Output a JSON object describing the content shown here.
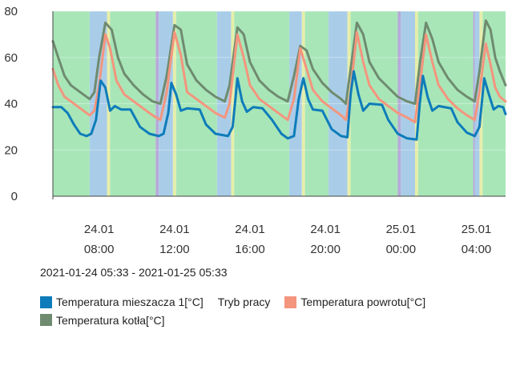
{
  "chart_data": {
    "type": "line",
    "y_ticks": [
      0,
      20,
      40,
      60,
      80
    ],
    "ylim": [
      0,
      80
    ],
    "x_range": [
      "2021-01-24 05:33",
      "2021-01-25 05:33"
    ],
    "x_ticks": [
      {
        "t": "2021-01-24 08:00",
        "date": "24.01",
        "time": "08:00"
      },
      {
        "t": "2021-01-24 12:00",
        "date": "24.01",
        "time": "12:00"
      },
      {
        "t": "2021-01-24 16:00",
        "date": "24.01",
        "time": "16:00"
      },
      {
        "t": "2021-01-24 20:00",
        "date": "24.01",
        "time": "20:00"
      },
      {
        "t": "2021-01-25 00:00",
        "date": "25.01",
        "time": "00:00"
      },
      {
        "t": "2021-01-25 04:00",
        "date": "25.01",
        "time": "04:00"
      }
    ],
    "mode_colors": {
      "green": "#a8e6b8",
      "blue": "#a9cde8",
      "yellow": "#e6eeaa",
      "purple": "#b6a9d8"
    },
    "mode_bands": [
      {
        "start": "2021-01-24 05:33",
        "end": "2021-01-24 07:30",
        "mode": "green"
      },
      {
        "start": "2021-01-24 07:30",
        "end": "2021-01-24 08:25",
        "mode": "blue"
      },
      {
        "start": "2021-01-24 08:25",
        "end": "2021-01-24 08:35",
        "mode": "yellow"
      },
      {
        "start": "2021-01-24 08:35",
        "end": "2021-01-24 11:00",
        "mode": "green"
      },
      {
        "start": "2021-01-24 11:00",
        "end": "2021-01-24 11:10",
        "mode": "purple"
      },
      {
        "start": "2021-01-24 11:10",
        "end": "2021-01-24 11:55",
        "mode": "blue"
      },
      {
        "start": "2021-01-24 11:55",
        "end": "2021-01-24 12:05",
        "mode": "yellow"
      },
      {
        "start": "2021-01-24 12:05",
        "end": "2021-01-24 14:15",
        "mode": "green"
      },
      {
        "start": "2021-01-24 14:15",
        "end": "2021-01-24 15:00",
        "mode": "blue"
      },
      {
        "start": "2021-01-24 15:00",
        "end": "2021-01-24 15:10",
        "mode": "yellow"
      },
      {
        "start": "2021-01-24 15:10",
        "end": "2021-01-24 18:05",
        "mode": "green"
      },
      {
        "start": "2021-01-24 18:05",
        "end": "2021-01-24 18:45",
        "mode": "blue"
      },
      {
        "start": "2021-01-24 18:45",
        "end": "2021-01-24 18:55",
        "mode": "yellow"
      },
      {
        "start": "2021-01-24 18:55",
        "end": "2021-01-24 20:10",
        "mode": "green"
      },
      {
        "start": "2021-01-24 20:10",
        "end": "2021-01-24 21:10",
        "mode": "blue"
      },
      {
        "start": "2021-01-24 21:10",
        "end": "2021-01-24 21:20",
        "mode": "yellow"
      },
      {
        "start": "2021-01-24 21:20",
        "end": "2021-01-24 23:50",
        "mode": "green"
      },
      {
        "start": "2021-01-24 23:50",
        "end": "2021-01-25 00:00",
        "mode": "purple"
      },
      {
        "start": "2021-01-25 00:00",
        "end": "2021-01-25 00:45",
        "mode": "blue"
      },
      {
        "start": "2021-01-25 00:45",
        "end": "2021-01-25 00:55",
        "mode": "yellow"
      },
      {
        "start": "2021-01-25 00:55",
        "end": "2021-01-25 03:50",
        "mode": "green"
      },
      {
        "start": "2021-01-25 03:50",
        "end": "2021-01-25 03:55",
        "mode": "purple"
      },
      {
        "start": "2021-01-25 03:55",
        "end": "2021-01-25 04:10",
        "mode": "blue"
      },
      {
        "start": "2021-01-25 04:10",
        "end": "2021-01-25 04:20",
        "mode": "yellow"
      },
      {
        "start": "2021-01-25 04:20",
        "end": "2021-01-25 05:33",
        "mode": "green"
      }
    ],
    "series": [
      {
        "name": "Temperatura mieszacza 1[°C]",
        "color": "#0e7cba",
        "points": [
          [
            "2021-01-24 05:33",
            38.5
          ],
          [
            "2021-01-24 06:00",
            38.5
          ],
          [
            "2021-01-24 06:20",
            36
          ],
          [
            "2021-01-24 06:40",
            31
          ],
          [
            "2021-01-24 07:00",
            27
          ],
          [
            "2021-01-24 07:20",
            26
          ],
          [
            "2021-01-24 07:35",
            27
          ],
          [
            "2021-01-24 07:50",
            33
          ],
          [
            "2021-01-24 08:05",
            50
          ],
          [
            "2021-01-24 08:20",
            47
          ],
          [
            "2021-01-24 08:35",
            37
          ],
          [
            "2021-01-24 08:50",
            39
          ],
          [
            "2021-01-24 09:10",
            37.5
          ],
          [
            "2021-01-24 09:40",
            37.5
          ],
          [
            "2021-01-24 10:10",
            30
          ],
          [
            "2021-01-24 10:40",
            27
          ],
          [
            "2021-01-24 11:10",
            26
          ],
          [
            "2021-01-24 11:25",
            27
          ],
          [
            "2021-01-24 11:40",
            36
          ],
          [
            "2021-01-24 11:50",
            49
          ],
          [
            "2021-01-24 12:05",
            44
          ],
          [
            "2021-01-24 12:20",
            37
          ],
          [
            "2021-01-24 12:40",
            38
          ],
          [
            "2021-01-24 13:20",
            37.5
          ],
          [
            "2021-01-24 13:40",
            31
          ],
          [
            "2021-01-24 14:10",
            27
          ],
          [
            "2021-01-24 14:50",
            26
          ],
          [
            "2021-01-24 15:05",
            30
          ],
          [
            "2021-01-24 15:20",
            51
          ],
          [
            "2021-01-24 15:35",
            41
          ],
          [
            "2021-01-24 15:50",
            36.5
          ],
          [
            "2021-01-24 16:10",
            38.5
          ],
          [
            "2021-01-24 16:40",
            38
          ],
          [
            "2021-01-24 17:10",
            33
          ],
          [
            "2021-01-24 17:40",
            27
          ],
          [
            "2021-01-24 18:00",
            25
          ],
          [
            "2021-01-24 18:20",
            26
          ],
          [
            "2021-01-24 18:35",
            42
          ],
          [
            "2021-01-24 18:50",
            51
          ],
          [
            "2021-01-24 19:05",
            42
          ],
          [
            "2021-01-24 19:20",
            37.5
          ],
          [
            "2021-01-24 19:50",
            37
          ],
          [
            "2021-01-24 20:20",
            29
          ],
          [
            "2021-01-24 20:50",
            26
          ],
          [
            "2021-01-24 21:10",
            25.5
          ],
          [
            "2021-01-24 21:20",
            44
          ],
          [
            "2021-01-24 21:30",
            54
          ],
          [
            "2021-01-24 21:45",
            44
          ],
          [
            "2021-01-24 22:00",
            37
          ],
          [
            "2021-01-24 22:20",
            40
          ],
          [
            "2021-01-24 23:00",
            39.5
          ],
          [
            "2021-01-24 23:20",
            33
          ],
          [
            "2021-01-24 23:50",
            27
          ],
          [
            "2021-01-25 00:20",
            25
          ],
          [
            "2021-01-25 00:50",
            24.5
          ],
          [
            "2021-01-25 01:00",
            40
          ],
          [
            "2021-01-25 01:10",
            52
          ],
          [
            "2021-01-25 01:25",
            43
          ],
          [
            "2021-01-25 01:40",
            37
          ],
          [
            "2021-01-25 02:00",
            39
          ],
          [
            "2021-01-25 02:40",
            38
          ],
          [
            "2021-01-25 03:00",
            32
          ],
          [
            "2021-01-25 03:30",
            27.5
          ],
          [
            "2021-01-25 03:55",
            26
          ],
          [
            "2021-01-25 04:10",
            30
          ],
          [
            "2021-01-25 04:25",
            51
          ],
          [
            "2021-01-25 04:40",
            44
          ],
          [
            "2021-01-25 04:55",
            37.5
          ],
          [
            "2021-01-25 05:10",
            39
          ],
          [
            "2021-01-25 05:25",
            38.5
          ],
          [
            "2021-01-25 05:33",
            35.5
          ]
        ]
      },
      {
        "name": "Tryb pracy",
        "color": "",
        "points": []
      },
      {
        "name": "Temperatura powrotu[°C]",
        "color": "#f4957e",
        "points": [
          [
            "2021-01-24 05:33",
            55
          ],
          [
            "2021-01-24 05:50",
            48
          ],
          [
            "2021-01-24 06:10",
            43
          ],
          [
            "2021-01-24 06:30",
            41
          ],
          [
            "2021-01-24 07:00",
            38
          ],
          [
            "2021-01-24 07:30",
            35
          ],
          [
            "2021-01-24 07:45",
            37
          ],
          [
            "2021-01-24 08:00",
            48
          ],
          [
            "2021-01-24 08:20",
            70
          ],
          [
            "2021-01-24 08:35",
            64
          ],
          [
            "2021-01-24 08:55",
            50
          ],
          [
            "2021-01-24 09:20",
            44
          ],
          [
            "2021-01-24 09:50",
            41
          ],
          [
            "2021-01-24 10:20",
            38
          ],
          [
            "2021-01-24 10:50",
            35
          ],
          [
            "2021-01-24 11:15",
            33
          ],
          [
            "2021-01-24 11:35",
            45
          ],
          [
            "2021-01-24 12:00",
            71
          ],
          [
            "2021-01-24 12:20",
            61
          ],
          [
            "2021-01-24 12:40",
            45
          ],
          [
            "2021-01-24 13:10",
            42
          ],
          [
            "2021-01-24 13:40",
            39
          ],
          [
            "2021-01-24 14:10",
            36
          ],
          [
            "2021-01-24 14:40",
            34
          ],
          [
            "2021-01-24 14:55",
            40
          ],
          [
            "2021-01-24 15:20",
            70
          ],
          [
            "2021-01-24 15:40",
            60
          ],
          [
            "2021-01-24 16:00",
            48
          ],
          [
            "2021-01-24 16:30",
            42
          ],
          [
            "2021-01-24 17:00",
            39
          ],
          [
            "2021-01-24 17:30",
            36
          ],
          [
            "2021-01-24 18:00",
            33
          ],
          [
            "2021-01-24 18:20",
            42
          ],
          [
            "2021-01-24 18:40",
            64
          ],
          [
            "2021-01-24 19:00",
            55
          ],
          [
            "2021-01-24 19:20",
            46
          ],
          [
            "2021-01-24 19:50",
            41
          ],
          [
            "2021-01-24 20:20",
            38
          ],
          [
            "2021-01-24 20:50",
            35
          ],
          [
            "2021-01-24 21:05",
            33
          ],
          [
            "2021-01-24 21:20",
            45
          ],
          [
            "2021-01-24 21:40",
            71
          ],
          [
            "2021-01-24 22:00",
            58
          ],
          [
            "2021-01-24 22:20",
            48
          ],
          [
            "2021-01-24 22:50",
            42
          ],
          [
            "2021-01-24 23:20",
            39
          ],
          [
            "2021-01-24 23:50",
            36
          ],
          [
            "2021-01-25 00:20",
            34
          ],
          [
            "2021-01-25 00:45",
            32
          ],
          [
            "2021-01-25 01:00",
            48
          ],
          [
            "2021-01-25 01:20",
            70
          ],
          [
            "2021-01-25 01:40",
            58
          ],
          [
            "2021-01-25 02:00",
            48
          ],
          [
            "2021-01-25 02:30",
            42
          ],
          [
            "2021-01-25 03:00",
            38
          ],
          [
            "2021-01-25 03:30",
            35
          ],
          [
            "2021-01-25 03:55",
            33
          ],
          [
            "2021-01-25 04:10",
            45
          ],
          [
            "2021-01-25 04:30",
            66
          ],
          [
            "2021-01-25 04:45",
            57
          ],
          [
            "2021-01-25 05:00",
            47
          ],
          [
            "2021-01-25 05:15",
            43
          ],
          [
            "2021-01-25 05:33",
            41
          ]
        ]
      },
      {
        "name": "Temperatura kotła[°C]",
        "color": "#6f8b6f",
        "points": [
          [
            "2021-01-24 05:33",
            67
          ],
          [
            "2021-01-24 05:50",
            60
          ],
          [
            "2021-01-24 06:10",
            52
          ],
          [
            "2021-01-24 06:30",
            48
          ],
          [
            "2021-01-24 07:00",
            45
          ],
          [
            "2021-01-24 07:30",
            42
          ],
          [
            "2021-01-24 07:45",
            45
          ],
          [
            "2021-01-24 08:00",
            60
          ],
          [
            "2021-01-24 08:20",
            75
          ],
          [
            "2021-01-24 08:40",
            72
          ],
          [
            "2021-01-24 09:00",
            60
          ],
          [
            "2021-01-24 09:20",
            53
          ],
          [
            "2021-01-24 09:50",
            48
          ],
          [
            "2021-01-24 10:20",
            44
          ],
          [
            "2021-01-24 10:50",
            41
          ],
          [
            "2021-01-24 11:15",
            40
          ],
          [
            "2021-01-24 11:35",
            52
          ],
          [
            "2021-01-24 12:00",
            74
          ],
          [
            "2021-01-24 12:20",
            72
          ],
          [
            "2021-01-24 12:40",
            57
          ],
          [
            "2021-01-24 13:10",
            50
          ],
          [
            "2021-01-24 13:40",
            46
          ],
          [
            "2021-01-24 14:10",
            43
          ],
          [
            "2021-01-24 14:40",
            41
          ],
          [
            "2021-01-24 14:55",
            48
          ],
          [
            "2021-01-24 15:20",
            73
          ],
          [
            "2021-01-24 15:40",
            70
          ],
          [
            "2021-01-24 16:00",
            58
          ],
          [
            "2021-01-24 16:30",
            50
          ],
          [
            "2021-01-24 17:00",
            46
          ],
          [
            "2021-01-24 17:30",
            43
          ],
          [
            "2021-01-24 18:00",
            41
          ],
          [
            "2021-01-24 18:20",
            52
          ],
          [
            "2021-01-24 18:40",
            65
          ],
          [
            "2021-01-24 19:00",
            63
          ],
          [
            "2021-01-24 19:20",
            55
          ],
          [
            "2021-01-24 19:50",
            49
          ],
          [
            "2021-01-24 20:20",
            45
          ],
          [
            "2021-01-24 20:50",
            42
          ],
          [
            "2021-01-24 21:05",
            40
          ],
          [
            "2021-01-24 21:20",
            55
          ],
          [
            "2021-01-24 21:40",
            75
          ],
          [
            "2021-01-24 22:00",
            70
          ],
          [
            "2021-01-24 22:20",
            58
          ],
          [
            "2021-01-24 22:50",
            51
          ],
          [
            "2021-01-24 23:20",
            47
          ],
          [
            "2021-01-24 23:50",
            43
          ],
          [
            "2021-01-25 00:20",
            41
          ],
          [
            "2021-01-25 00:45",
            40
          ],
          [
            "2021-01-25 01:00",
            57
          ],
          [
            "2021-01-25 01:20",
            75
          ],
          [
            "2021-01-25 01:40",
            68
          ],
          [
            "2021-01-25 02:00",
            58
          ],
          [
            "2021-01-25 02:30",
            51
          ],
          [
            "2021-01-25 03:00",
            46
          ],
          [
            "2021-01-25 03:30",
            43
          ],
          [
            "2021-01-25 03:55",
            41
          ],
          [
            "2021-01-25 04:10",
            54
          ],
          [
            "2021-01-25 04:30",
            76
          ],
          [
            "2021-01-25 04:45",
            72
          ],
          [
            "2021-01-25 05:00",
            60
          ],
          [
            "2021-01-25 05:15",
            54
          ],
          [
            "2021-01-25 05:33",
            48
          ]
        ]
      }
    ]
  },
  "range_label": "2021-01-24 05:33 - 2021-01-25 05:33",
  "legend": [
    {
      "label": "Temperatura mieszacza 1[°C]",
      "color": "#0e7cba",
      "swatch": true
    },
    {
      "label": "Tryb pracy",
      "color": "",
      "swatch": false
    },
    {
      "label": "Temperatura powrotu[°C]",
      "color": "#f4957e",
      "swatch": true
    },
    {
      "label": "Temperatura kotła[°C]",
      "color": "#6f8b6f",
      "swatch": true
    }
  ]
}
